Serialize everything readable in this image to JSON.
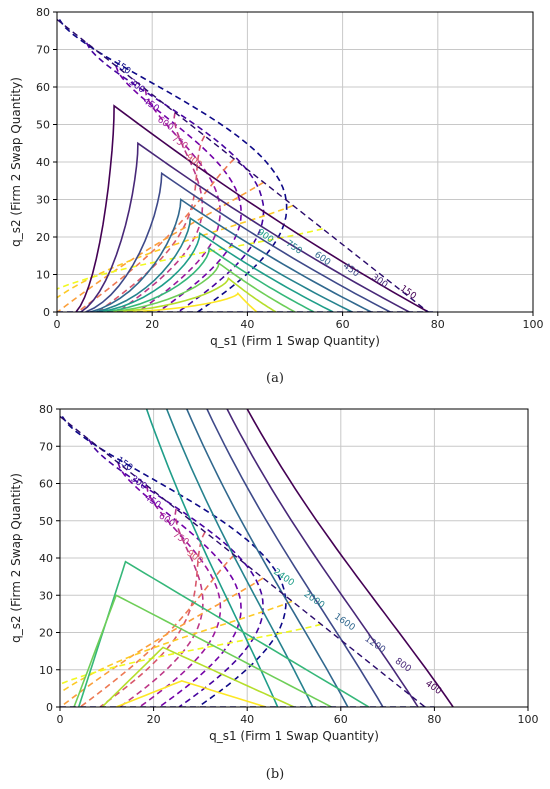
{
  "chart_data": [
    {
      "type": "line",
      "panel_caption": "(a)",
      "xlabel": "q_s1 (Firm 1 Swap Quantity)",
      "ylabel": "q_s2 (Firm 2 Swap Quantity)",
      "xlim": [
        0,
        100
      ],
      "ylim": [
        0,
        80
      ],
      "x_ticks": [
        0,
        20,
        40,
        60,
        80,
        100
      ],
      "y_ticks": [
        0,
        10,
        20,
        30,
        40,
        50,
        60,
        70,
        80
      ],
      "grid": true,
      "dashed_levels": [
        "150",
        "300",
        "450",
        "600",
        "750",
        "900",
        "1050",
        "1200",
        "1350",
        "1500"
      ],
      "solid_levels": [
        "150",
        "300",
        "450",
        "600",
        "750",
        "900",
        "1050",
        "1200",
        "1350",
        "1500"
      ],
      "feasible_boundary": [
        [
          0,
          78
        ],
        [
          78,
          0
        ]
      ]
    },
    {
      "type": "line",
      "panel_caption": "(b)",
      "xlabel": "q_s1 (Firm 1 Swap Quantity)",
      "ylabel": "q_s2 (Firm 2 Swap Quantity)",
      "xlim": [
        0,
        100
      ],
      "ylim": [
        0,
        80
      ],
      "x_ticks": [
        0,
        20,
        40,
        60,
        80,
        100
      ],
      "y_ticks": [
        0,
        10,
        20,
        30,
        40,
        50,
        60,
        70,
        80
      ],
      "grid": true,
      "dashed_levels": [
        "150",
        "300",
        "450",
        "600",
        "750",
        "900",
        "1050",
        "1200",
        "1350",
        "1500"
      ],
      "solid_levels": [
        "400",
        "800",
        "1200",
        "1600",
        "2000",
        "2400",
        "2800",
        "3200",
        "3600",
        "4000"
      ],
      "feasible_boundary": [
        [
          0,
          78
        ],
        [
          78,
          0
        ]
      ]
    }
  ]
}
